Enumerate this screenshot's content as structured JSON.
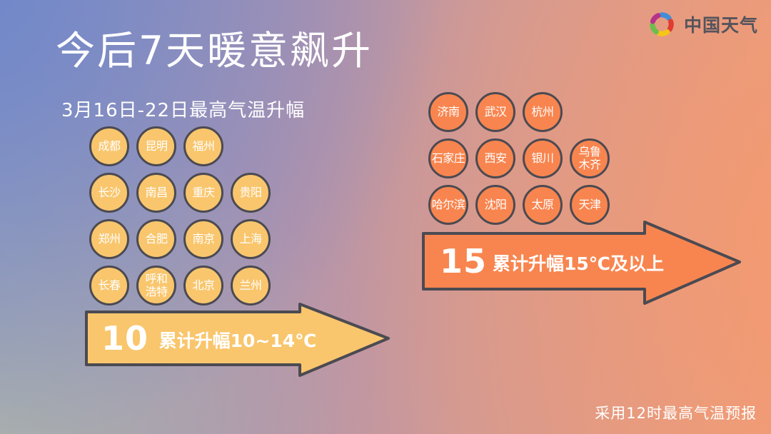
{
  "header": {
    "title": "今后7天暖意飙升",
    "subtitle": "3月16日-22日最高气温升幅"
  },
  "brand": {
    "name": "中国天气",
    "logo_colors": [
      "#3f8fd8",
      "#e03c31",
      "#f5c517",
      "#6abf4b",
      "#b5338a"
    ]
  },
  "groups": {
    "tier10": {
      "rows": [
        [
          "成都",
          "昆明",
          "福州"
        ],
        [
          "长沙",
          "南昌",
          "重庆",
          "贵阳"
        ],
        [
          "郑州",
          "合肥",
          "南京",
          "上海"
        ],
        [
          "长春",
          "呼和浩特",
          "北京",
          "兰州"
        ]
      ],
      "arrow_value": "10",
      "arrow_label": "累计升幅10~14℃",
      "color": "#f9c66d",
      "outline_color": "#4b4a52"
    },
    "tier15": {
      "rows": [
        [
          "济南",
          "武汉",
          "杭州"
        ],
        [
          "石家庄",
          "西安",
          "银川",
          "乌鲁木齐"
        ],
        [
          "哈尔滨",
          "沈阳",
          "太原",
          "天津"
        ]
      ],
      "arrow_value": "15",
      "arrow_label": "累计升幅15℃及以上",
      "color": "#f8854f",
      "outline_color": "#4b4a52"
    }
  },
  "footer": {
    "note": "采用12时最高气温预报"
  }
}
